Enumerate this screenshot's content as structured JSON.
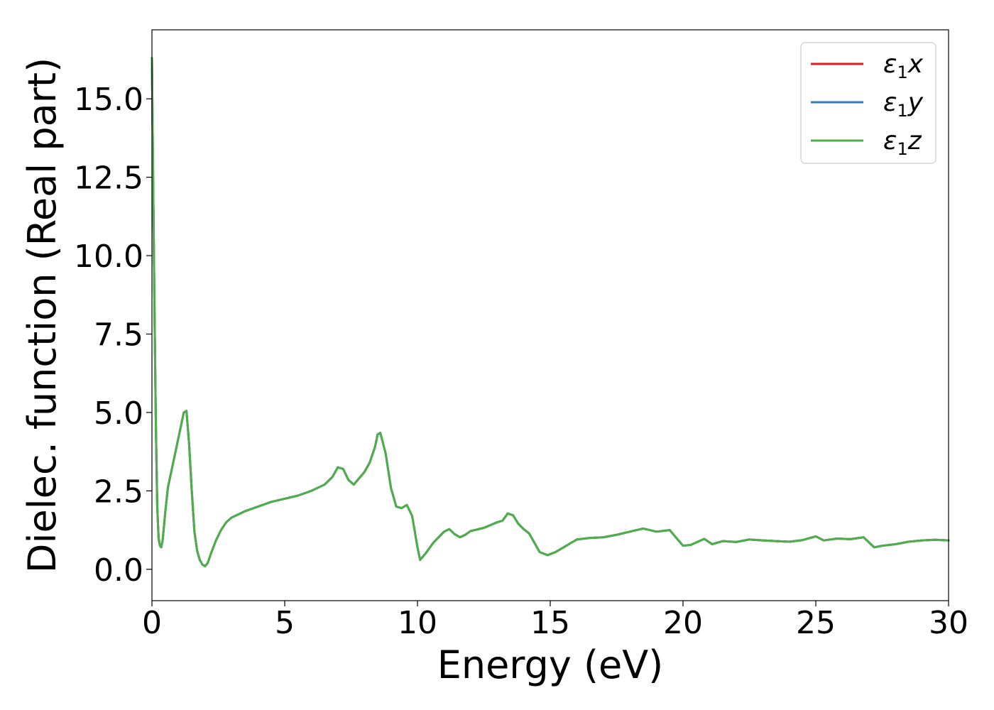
{
  "chart_data": {
    "type": "line",
    "xlabel": "Energy (eV)",
    "ylabel": "Dielec. function (Real part)",
    "xlim": [
      0,
      30
    ],
    "ylim": [
      -1,
      17.2
    ],
    "xticks": [
      0,
      5,
      10,
      15,
      20,
      25,
      30
    ],
    "yticks": [
      0.0,
      2.5,
      5.0,
      7.5,
      10.0,
      12.5,
      15.0
    ],
    "xtick_labels": [
      "0",
      "5",
      "10",
      "15",
      "20",
      "25",
      "30"
    ],
    "ytick_labels": [
      "0.0",
      "2.5",
      "5.0",
      "7.5",
      "10.0",
      "12.5",
      "15.0"
    ],
    "grid": false,
    "legend_position": "top-right",
    "legend": [
      {
        "symbol": "ε",
        "sub": "1",
        "suffix": "x",
        "color": "#e41a1c"
      },
      {
        "symbol": "ε",
        "sub": "1",
        "suffix": "y",
        "color": "#377eb8"
      },
      {
        "symbol": "ε",
        "sub": "1",
        "suffix": "z",
        "color": "#4daf4a"
      }
    ],
    "x": [
      0.0,
      0.05,
      0.1,
      0.15,
      0.2,
      0.25,
      0.3,
      0.35,
      0.4,
      0.5,
      0.6,
      0.7,
      0.8,
      0.9,
      1.0,
      1.1,
      1.2,
      1.3,
      1.4,
      1.5,
      1.6,
      1.7,
      1.8,
      1.9,
      2.0,
      2.1,
      2.2,
      2.4,
      2.6,
      2.8,
      3.0,
      3.5,
      4.0,
      4.5,
      5.0,
      5.5,
      6.0,
      6.5,
      6.8,
      7.0,
      7.2,
      7.4,
      7.6,
      7.8,
      8.0,
      8.2,
      8.4,
      8.5,
      8.6,
      8.8,
      9.0,
      9.2,
      9.4,
      9.6,
      9.8,
      10.0,
      10.1,
      10.3,
      10.6,
      11.0,
      11.2,
      11.4,
      11.6,
      11.8,
      12.0,
      12.5,
      13.0,
      13.2,
      13.4,
      13.6,
      13.8,
      14.0,
      14.2,
      14.4,
      14.6,
      14.9,
      15.2,
      15.5,
      15.8,
      16.0,
      16.5,
      17.0,
      17.5,
      18.0,
      18.5,
      19.0,
      19.5,
      20.0,
      20.3,
      20.8,
      21.1,
      21.5,
      22.0,
      22.5,
      23.0,
      23.5,
      24.0,
      24.5,
      25.0,
      25.3,
      25.8,
      26.3,
      26.8,
      27.2,
      27.5,
      28.0,
      28.5,
      29.0,
      29.5,
      30.0
    ],
    "series": [
      {
        "name": "ε1x",
        "values": [
          16.3,
          12.0,
          8.0,
          4.5,
          2.0,
          1.0,
          0.75,
          0.7,
          0.9,
          1.8,
          2.6,
          3.0,
          3.4,
          3.8,
          4.2,
          4.6,
          5.0,
          5.05,
          4.0,
          2.5,
          1.2,
          0.6,
          0.3,
          0.15,
          0.1,
          0.2,
          0.45,
          0.9,
          1.25,
          1.5,
          1.65,
          1.85,
          2.0,
          2.15,
          2.25,
          2.35,
          2.5,
          2.7,
          2.95,
          3.25,
          3.2,
          2.85,
          2.7,
          2.9,
          3.1,
          3.4,
          3.9,
          4.3,
          4.35,
          3.7,
          2.6,
          2.0,
          1.95,
          2.05,
          1.7,
          0.7,
          0.3,
          0.5,
          0.85,
          1.2,
          1.28,
          1.12,
          1.02,
          1.1,
          1.22,
          1.32,
          1.5,
          1.55,
          1.78,
          1.72,
          1.45,
          1.28,
          1.15,
          0.85,
          0.55,
          0.45,
          0.55,
          0.7,
          0.85,
          0.95,
          1.0,
          1.02,
          1.1,
          1.2,
          1.3,
          1.2,
          1.25,
          0.75,
          0.78,
          0.97,
          0.8,
          0.9,
          0.87,
          0.95,
          0.92,
          0.9,
          0.88,
          0.93,
          1.05,
          0.92,
          0.98,
          0.96,
          1.02,
          0.7,
          0.75,
          0.8,
          0.88,
          0.92,
          0.94,
          0.92
        ]
      },
      {
        "name": "ε1y",
        "values": [
          16.3,
          12.0,
          8.0,
          4.5,
          2.0,
          1.0,
          0.75,
          0.7,
          0.9,
          1.8,
          2.6,
          3.0,
          3.4,
          3.8,
          4.2,
          4.6,
          5.0,
          5.05,
          4.0,
          2.5,
          1.2,
          0.6,
          0.3,
          0.15,
          0.1,
          0.2,
          0.45,
          0.9,
          1.25,
          1.5,
          1.65,
          1.85,
          2.0,
          2.15,
          2.25,
          2.35,
          2.5,
          2.7,
          2.95,
          3.25,
          3.2,
          2.85,
          2.7,
          2.9,
          3.1,
          3.4,
          3.9,
          4.3,
          4.35,
          3.7,
          2.6,
          2.0,
          1.95,
          2.05,
          1.7,
          0.7,
          0.3,
          0.5,
          0.85,
          1.2,
          1.28,
          1.12,
          1.02,
          1.1,
          1.22,
          1.32,
          1.5,
          1.55,
          1.78,
          1.72,
          1.45,
          1.28,
          1.15,
          0.85,
          0.55,
          0.45,
          0.55,
          0.7,
          0.85,
          0.95,
          1.0,
          1.02,
          1.1,
          1.2,
          1.3,
          1.2,
          1.25,
          0.75,
          0.78,
          0.97,
          0.8,
          0.9,
          0.87,
          0.95,
          0.92,
          0.9,
          0.88,
          0.93,
          1.05,
          0.92,
          0.98,
          0.96,
          1.02,
          0.7,
          0.75,
          0.8,
          0.88,
          0.92,
          0.94,
          0.92
        ]
      },
      {
        "name": "ε1z",
        "values": [
          16.3,
          12.0,
          8.0,
          4.5,
          2.0,
          1.0,
          0.75,
          0.7,
          0.9,
          1.8,
          2.6,
          3.0,
          3.4,
          3.8,
          4.2,
          4.6,
          5.0,
          5.05,
          4.0,
          2.5,
          1.2,
          0.6,
          0.3,
          0.15,
          0.1,
          0.2,
          0.45,
          0.9,
          1.25,
          1.5,
          1.65,
          1.85,
          2.0,
          2.15,
          2.25,
          2.35,
          2.5,
          2.7,
          2.95,
          3.25,
          3.2,
          2.85,
          2.7,
          2.9,
          3.1,
          3.4,
          3.9,
          4.3,
          4.35,
          3.7,
          2.6,
          2.0,
          1.95,
          2.05,
          1.7,
          0.7,
          0.3,
          0.5,
          0.85,
          1.2,
          1.28,
          1.12,
          1.02,
          1.1,
          1.22,
          1.32,
          1.5,
          1.55,
          1.78,
          1.72,
          1.45,
          1.28,
          1.15,
          0.85,
          0.55,
          0.45,
          0.55,
          0.7,
          0.85,
          0.95,
          1.0,
          1.02,
          1.1,
          1.2,
          1.3,
          1.2,
          1.25,
          0.75,
          0.78,
          0.97,
          0.8,
          0.9,
          0.87,
          0.95,
          0.92,
          0.9,
          0.88,
          0.93,
          1.05,
          0.92,
          0.98,
          0.96,
          1.02,
          0.7,
          0.75,
          0.8,
          0.88,
          0.92,
          0.94,
          0.92
        ]
      }
    ]
  }
}
